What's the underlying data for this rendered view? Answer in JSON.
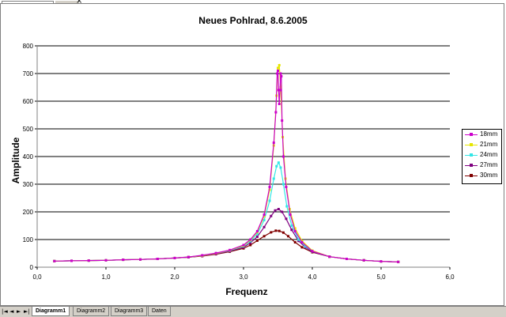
{
  "colors": {
    "grid": "#000000",
    "axis": "#808080"
  },
  "sheet_tabs": {
    "nav_first": "|◄",
    "nav_prev": "◄",
    "nav_next": "►",
    "nav_last": "►|",
    "tabs": [
      "Diagramm1",
      "Diagramm2",
      "Diagramm3",
      "Daten"
    ],
    "active": "Diagramm1"
  },
  "chart_data": {
    "type": "line",
    "title": "Neues Pohlrad, 8.6.2005",
    "xlabel": "Frequenz",
    "ylabel": "Amplitude",
    "xlim": [
      0,
      6
    ],
    "ylim": [
      0,
      800
    ],
    "xticks": [
      "0,0",
      "1,0",
      "2,0",
      "3,0",
      "4,0",
      "5,0",
      "6,0"
    ],
    "yticks": [
      "0",
      "100",
      "200",
      "300",
      "400",
      "500",
      "600",
      "700",
      "800"
    ],
    "grid": "horizontal",
    "legend_position": "right",
    "series": [
      {
        "name": "18mm",
        "color": "#cc00cc",
        "marker": "square",
        "x": [
          0.25,
          0.5,
          0.75,
          1.0,
          1.25,
          1.5,
          1.75,
          2.0,
          2.2,
          2.4,
          2.6,
          2.8,
          3.0,
          3.1,
          3.2,
          3.3,
          3.38,
          3.44,
          3.47,
          3.49,
          3.5,
          3.51,
          3.52,
          3.53,
          3.54,
          3.55,
          3.56,
          3.58,
          3.62,
          3.68,
          3.75,
          3.85,
          4.0,
          4.25,
          4.5,
          4.75,
          5.0,
          5.25
        ],
        "y": [
          22,
          23,
          24,
          25,
          27,
          28,
          30,
          33,
          37,
          43,
          51,
          62,
          80,
          100,
          130,
          190,
          290,
          450,
          560,
          700,
          710,
          640,
          590,
          640,
          700,
          690,
          530,
          400,
          290,
          190,
          130,
          90,
          58,
          38,
          30,
          25,
          21,
          19
        ]
      },
      {
        "name": "21mm",
        "color": "#e6e600",
        "marker": "diamond",
        "x": [
          0.25,
          0.5,
          0.75,
          1.0,
          1.25,
          1.5,
          1.75,
          2.0,
          2.2,
          2.4,
          2.6,
          2.8,
          3.0,
          3.1,
          3.2,
          3.3,
          3.38,
          3.44,
          3.48,
          3.5,
          3.52,
          3.54,
          3.57,
          3.61,
          3.67,
          3.75,
          3.85,
          4.0,
          4.25,
          4.5,
          4.75,
          5.0,
          5.25
        ],
        "y": [
          22,
          23,
          24,
          25,
          27,
          28,
          30,
          33,
          37,
          42,
          50,
          61,
          78,
          98,
          127,
          185,
          280,
          440,
          620,
          720,
          730,
          650,
          470,
          320,
          210,
          140,
          95,
          60,
          38,
          30,
          25,
          21,
          19
        ]
      },
      {
        "name": "24mm",
        "color": "#33e6e6",
        "marker": "triangle",
        "x": [
          0.25,
          0.5,
          0.75,
          1.0,
          1.25,
          1.5,
          1.75,
          2.0,
          2.2,
          2.4,
          2.6,
          2.8,
          3.0,
          3.1,
          3.2,
          3.3,
          3.38,
          3.44,
          3.48,
          3.51,
          3.54,
          3.58,
          3.63,
          3.7,
          3.8,
          3.9,
          4.0,
          4.25,
          4.5,
          4.75,
          5.0,
          5.25
        ],
        "y": [
          22,
          23,
          24,
          25,
          27,
          28,
          30,
          33,
          37,
          42,
          50,
          60,
          76,
          94,
          120,
          170,
          240,
          320,
          365,
          378,
          360,
          300,
          220,
          150,
          100,
          75,
          58,
          38,
          30,
          25,
          21,
          19
        ]
      },
      {
        "name": "27mm",
        "color": "#800080",
        "marker": "x",
        "x": [
          0.25,
          0.5,
          0.75,
          1.0,
          1.25,
          1.5,
          1.75,
          2.0,
          2.2,
          2.4,
          2.6,
          2.8,
          3.0,
          3.1,
          3.2,
          3.3,
          3.4,
          3.46,
          3.51,
          3.56,
          3.62,
          3.7,
          3.8,
          3.9,
          4.0,
          4.25,
          4.5,
          4.75,
          5.0,
          5.25
        ],
        "y": [
          22,
          23,
          24,
          25,
          27,
          28,
          30,
          33,
          36,
          41,
          48,
          58,
          72,
          88,
          110,
          145,
          185,
          205,
          210,
          200,
          175,
          135,
          95,
          72,
          56,
          38,
          30,
          25,
          21,
          19
        ]
      },
      {
        "name": "30mm",
        "color": "#800000",
        "marker": "circle",
        "x": [
          0.25,
          0.5,
          0.75,
          1.0,
          1.25,
          1.5,
          1.75,
          2.0,
          2.2,
          2.4,
          2.6,
          2.8,
          3.0,
          3.1,
          3.2,
          3.3,
          3.4,
          3.47,
          3.52,
          3.58,
          3.65,
          3.75,
          3.85,
          4.0,
          4.25,
          4.5,
          4.75,
          5.0,
          5.25
        ],
        "y": [
          22,
          23,
          24,
          25,
          27,
          28,
          30,
          33,
          36,
          40,
          47,
          56,
          68,
          80,
          96,
          112,
          126,
          132,
          131,
          125,
          112,
          90,
          72,
          54,
          38,
          30,
          25,
          21,
          19
        ]
      }
    ]
  }
}
